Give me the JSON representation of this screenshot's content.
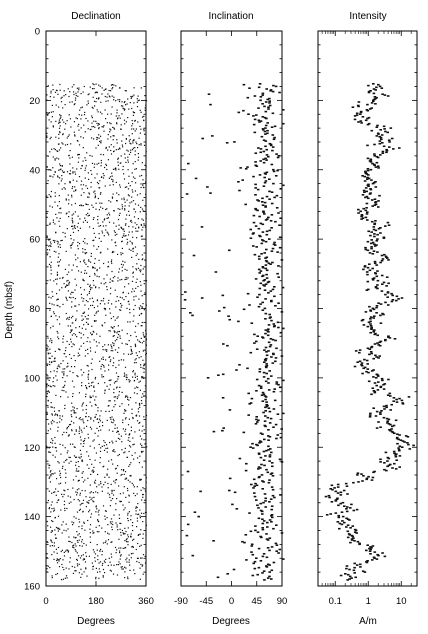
{
  "chart_data": [
    {
      "type": "scatter",
      "title": "Declination",
      "xlabel": "Degrees",
      "ylabel": "Depth (mbsf)",
      "xlim": [
        0,
        360
      ],
      "ylim": [
        160,
        0
      ],
      "x_ticks": [
        "0",
        "180",
        "360"
      ],
      "y_ticks": [
        "0",
        "20",
        "40",
        "60",
        "80",
        "100",
        "120",
        "140",
        "160"
      ],
      "x_scale": "linear",
      "depth_range": [
        15,
        158
      ],
      "series": [
        {
          "values": "dense scatter of declination points between 0 and 360 degrees at 15-158 mbsf, spread across the full range"
        }
      ]
    },
    {
      "type": "scatter",
      "title": "Inclination",
      "xlabel": "Degrees",
      "xlim": [
        -90,
        90
      ],
      "ylim": [
        160,
        0
      ],
      "x_ticks": [
        "-90",
        "-45",
        "0",
        "45",
        "90"
      ],
      "x_scale": "linear",
      "depth_range": [
        15,
        158
      ],
      "series": [
        {
          "values": "cluster of inclination values mostly between 30 and 90 degrees, with scattered excursions toward -90"
        }
      ]
    },
    {
      "type": "line",
      "title": "Intensity",
      "xlabel": "A/m",
      "xlim": [
        0.03,
        30
      ],
      "ylim": [
        160,
        0
      ],
      "x_ticks": [
        "0.1",
        "1",
        "10"
      ],
      "x_scale": "log",
      "depth_range": [
        15,
        158
      ],
      "series": [
        {
          "values": "intensity mostly between 0.05 and 10 A/m, varying with depth"
        }
      ]
    }
  ]
}
